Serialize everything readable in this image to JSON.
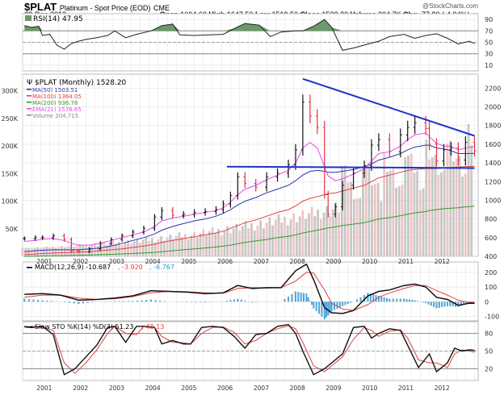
{
  "header": {
    "symbol": "$PLAT",
    "name": "Platinum  - Spot Price (EOD)",
    "exchange": "CME",
    "date": "28-Dec-2012",
    "copyright": "@StockCharts.com",
    "open_label": "Open",
    "open": "1604.60",
    "high_label": "High",
    "high": "1647.50",
    "low_label": "Low",
    "low": "1519.50",
    "close_label": "Close",
    "close": "1528.20",
    "volume_label": "Volume",
    "volume": "204.7K",
    "chg_label": "Chg",
    "chg": "-77.80 (-4.84%)",
    "down_color": "#cc0000"
  },
  "chart_data": [
    {
      "type": "line",
      "title": "RSI(14) 47.95",
      "ylim": [
        0,
        100
      ],
      "yticks": [
        10,
        30,
        50,
        70,
        90
      ],
      "overbought": 70,
      "oversold": 30,
      "x": [
        2000.5,
        2000.7,
        2000.9,
        2001.0,
        2001.2,
        2001.4,
        2001.6,
        2001.8,
        2002.0,
        2002.2,
        2002.5,
        2002.8,
        2003.0,
        2003.3,
        2003.6,
        2004.0,
        2004.3,
        2004.6,
        2004.8,
        2005.2,
        2005.6,
        2006.0,
        2006.3,
        2006.6,
        2007.0,
        2007.3,
        2007.6,
        2008.0,
        2008.2,
        2008.5,
        2008.8,
        2009.0,
        2009.3,
        2009.6,
        2010.0,
        2010.3,
        2010.6,
        2011.0,
        2011.3,
        2011.6,
        2011.9,
        2012.2,
        2012.5,
        2012.8,
        2012.95
      ],
      "values": [
        79,
        76,
        78,
        62,
        64,
        45,
        38,
        48,
        52,
        55,
        58,
        62,
        70,
        58,
        64,
        70,
        79,
        82,
        63,
        62,
        63,
        64,
        74,
        83,
        80,
        60,
        68,
        70,
        70,
        78,
        90,
        76,
        36,
        40,
        47,
        52,
        60,
        64,
        57,
        62,
        65,
        57,
        47,
        52,
        48
      ],
      "series_name": "RSI(14)",
      "last": 47.95
    },
    {
      "type": "ohlc",
      "title": "$PLAT (Monthly) 1528.20",
      "ylim": [
        400,
        2350
      ],
      "yticks": [
        400,
        600,
        800,
        1000,
        1200,
        1400,
        1600,
        1800,
        2000,
        2200
      ],
      "volume_ticks": [
        "50K",
        "100K",
        "150K",
        "200K",
        "250K",
        "300K"
      ],
      "volume_ylim": [
        0,
        330000
      ],
      "legend": [
        {
          "name": "MA(50) 1503.51",
          "color": "#3333aa"
        },
        {
          "name": "MA(100) 1364.05",
          "color": "#e04040"
        },
        {
          "name": "MA(200) 936.78",
          "color": "#339933"
        },
        {
          "name": "EMA(21) 1576.65",
          "color": "#ee44ee"
        },
        {
          "name": "Volume 204,715",
          "color": "#888888"
        }
      ],
      "close_x": [
        2000.5,
        2000.8,
        2001.0,
        2001.3,
        2001.6,
        2001.8,
        2002.0,
        2002.3,
        2002.6,
        2002.9,
        2003.2,
        2003.5,
        2003.8,
        2004.1,
        2004.3,
        2004.6,
        2004.9,
        2005.2,
        2005.5,
        2005.8,
        2006.0,
        2006.2,
        2006.4,
        2006.6,
        2006.9,
        2007.2,
        2007.5,
        2007.8,
        2008.0,
        2008.2,
        2008.4,
        2008.6,
        2008.8,
        2008.9,
        2009.1,
        2009.3,
        2009.6,
        2009.9,
        2010.1,
        2010.3,
        2010.6,
        2010.9,
        2011.1,
        2011.3,
        2011.6,
        2011.7,
        2011.9,
        2012.1,
        2012.3,
        2012.5,
        2012.7,
        2012.95
      ],
      "close_values": [
        590,
        600,
        600,
        620,
        580,
        460,
        450,
        480,
        540,
        580,
        620,
        660,
        700,
        820,
        890,
        840,
        850,
        870,
        880,
        900,
        960,
        1050,
        1250,
        1180,
        1140,
        1250,
        1290,
        1380,
        1540,
        2050,
        1900,
        1780,
        1060,
        850,
        930,
        1160,
        1290,
        1370,
        1590,
        1650,
        1520,
        1700,
        1780,
        1830,
        1770,
        1600,
        1420,
        1540,
        1560,
        1430,
        1620,
        1528
      ],
      "ema21": [
        560,
        570,
        585,
        590,
        570,
        540,
        520,
        520,
        540,
        570,
        600,
        630,
        660,
        720,
        780,
        810,
        830,
        850,
        870,
        890,
        920,
        980,
        1060,
        1120,
        1160,
        1220,
        1270,
        1320,
        1400,
        1560,
        1620,
        1560,
        1360,
        1260,
        1210,
        1230,
        1280,
        1340,
        1420,
        1500,
        1520,
        1580,
        1650,
        1700,
        1720,
        1680,
        1610,
        1580,
        1580,
        1540,
        1560,
        1576
      ],
      "ma50": [
        450,
        460,
        465,
        470,
        470,
        470,
        470,
        480,
        490,
        510,
        540,
        570,
        600,
        640,
        680,
        720,
        750,
        780,
        800,
        830,
        860,
        900,
        950,
        990,
        1030,
        1080,
        1120,
        1160,
        1210,
        1270,
        1310,
        1320,
        1310,
        1300,
        1300,
        1310,
        1330,
        1360,
        1390,
        1430,
        1460,
        1500,
        1540,
        1570,
        1590,
        1590,
        1560,
        1550,
        1530,
        1500,
        1500,
        1503
      ],
      "ma100": [
        420,
        425,
        430,
        435,
        440,
        440,
        445,
        450,
        460,
        470,
        480,
        495,
        510,
        530,
        550,
        570,
        590,
        610,
        630,
        650,
        670,
        700,
        730,
        760,
        790,
        830,
        870,
        900,
        940,
        990,
        1020,
        1040,
        1060,
        1070,
        1080,
        1100,
        1130,
        1160,
        1200,
        1240,
        1270,
        1300,
        1320,
        1330,
        1340,
        1340,
        1340,
        1345,
        1350,
        1355,
        1360,
        1364
      ],
      "ma200": [
        400,
        402,
        404,
        406,
        408,
        410,
        412,
        414,
        418,
        422,
        426,
        430,
        436,
        442,
        450,
        460,
        470,
        480,
        490,
        500,
        510,
        520,
        535,
        550,
        565,
        580,
        600,
        615,
        630,
        650,
        665,
        680,
        695,
        705,
        715,
        730,
        745,
        760,
        780,
        800,
        815,
        835,
        850,
        865,
        880,
        890,
        900,
        910,
        915,
        920,
        930,
        937
      ],
      "trendlines": [
        {
          "name": "resistance",
          "from": [
            2008.2,
            2300
          ],
          "to": [
            2012.95,
            1690
          ],
          "color": "#1a33cc"
        },
        {
          "name": "support",
          "from": [
            2006.1,
            1360
          ],
          "to": [
            2012.95,
            1345
          ],
          "color": "#1a33cc"
        }
      ],
      "last_close": 1528.2
    },
    {
      "type": "line",
      "title_parts": [
        "MACD(12,26,9) -10.687",
        ", -3.920",
        ", -6.767"
      ],
      "title_colors": [
        "#000000",
        "#e04040",
        "#3399cc"
      ],
      "ylim": [
        -130,
        270
      ],
      "yticks": [
        -100,
        0,
        100,
        200
      ],
      "x": [
        2000.5,
        2001.0,
        2001.5,
        2002.0,
        2002.5,
        2003.0,
        2003.5,
        2004.0,
        2004.5,
        2005.0,
        2005.5,
        2006.0,
        2006.4,
        2006.8,
        2007.2,
        2007.6,
        2008.0,
        2008.3,
        2008.5,
        2008.8,
        2009.0,
        2009.3,
        2009.6,
        2010.0,
        2010.3,
        2010.6,
        2011.0,
        2011.3,
        2011.6,
        2011.9,
        2012.2,
        2012.5,
        2012.8,
        2012.95
      ],
      "macd": [
        50,
        55,
        45,
        10,
        15,
        25,
        40,
        75,
        70,
        65,
        55,
        60,
        110,
        90,
        95,
        95,
        210,
        255,
        150,
        -40,
        -75,
        -80,
        -60,
        40,
        70,
        80,
        110,
        120,
        100,
        30,
        15,
        -25,
        -10,
        -10.687
      ],
      "signal": [
        30,
        45,
        45,
        25,
        15,
        20,
        35,
        60,
        70,
        68,
        60,
        58,
        90,
        95,
        93,
        95,
        140,
        200,
        195,
        80,
        -10,
        -50,
        -60,
        -20,
        30,
        60,
        90,
        110,
        110,
        75,
        45,
        10,
        -5,
        -3.92
      ],
      "histogram": [
        20,
        10,
        0,
        -15,
        0,
        5,
        5,
        15,
        0,
        -3,
        -5,
        2,
        20,
        -5,
        2,
        0,
        70,
        55,
        -45,
        -120,
        -65,
        -30,
        0,
        60,
        40,
        20,
        20,
        10,
        -10,
        -45,
        -30,
        -35,
        -5,
        -6.767
      ]
    },
    {
      "type": "line",
      "title_parts": [
        "Slow STO %K(14) %D(3) 51.23",
        ", 48.13"
      ],
      "title_colors": [
        "#000000",
        "#e04040"
      ],
      "ylim": [
        0,
        100
      ],
      "yticks": [
        20,
        50,
        80
      ],
      "x": [
        2000.5,
        2000.7,
        2001.0,
        2001.3,
        2001.6,
        2001.9,
        2002.2,
        2002.5,
        2002.8,
        2003.0,
        2003.3,
        2003.6,
        2003.8,
        2004.1,
        2004.3,
        2004.6,
        2004.9,
        2005.1,
        2005.4,
        2005.7,
        2006.0,
        2006.3,
        2006.6,
        2006.9,
        2007.2,
        2007.5,
        2007.8,
        2008.0,
        2008.2,
        2008.5,
        2008.8,
        2009.0,
        2009.3,
        2009.6,
        2009.9,
        2010.1,
        2010.3,
        2010.6,
        2010.9,
        2011.1,
        2011.4,
        2011.7,
        2011.9,
        2012.2,
        2012.4,
        2012.6,
        2012.8,
        2012.95
      ],
      "k": [
        92,
        90,
        92,
        78,
        10,
        20,
        40,
        60,
        90,
        92,
        65,
        92,
        92,
        90,
        62,
        68,
        62,
        62,
        90,
        92,
        90,
        75,
        55,
        78,
        80,
        92,
        95,
        80,
        50,
        10,
        20,
        30,
        45,
        90,
        92,
        72,
        80,
        88,
        85,
        60,
        22,
        45,
        15,
        30,
        55,
        50,
        52,
        51.23
      ],
      "d": [
        90,
        92,
        90,
        85,
        30,
        12,
        30,
        52,
        80,
        92,
        80,
        78,
        92,
        90,
        75,
        65,
        64,
        62,
        80,
        90,
        91,
        82,
        62,
        68,
        80,
        88,
        93,
        88,
        65,
        25,
        15,
        25,
        40,
        70,
        90,
        85,
        75,
        84,
        86,
        72,
        35,
        30,
        30,
        22,
        45,
        52,
        50,
        48.13
      ]
    }
  ],
  "x_axis": {
    "ticks": [
      "2001",
      "2002",
      "2003",
      "2004",
      "2005",
      "2006",
      "2007",
      "2008",
      "2009",
      "2010",
      "2011",
      "2012"
    ],
    "range": [
      2000.45,
      2013.05
    ]
  }
}
